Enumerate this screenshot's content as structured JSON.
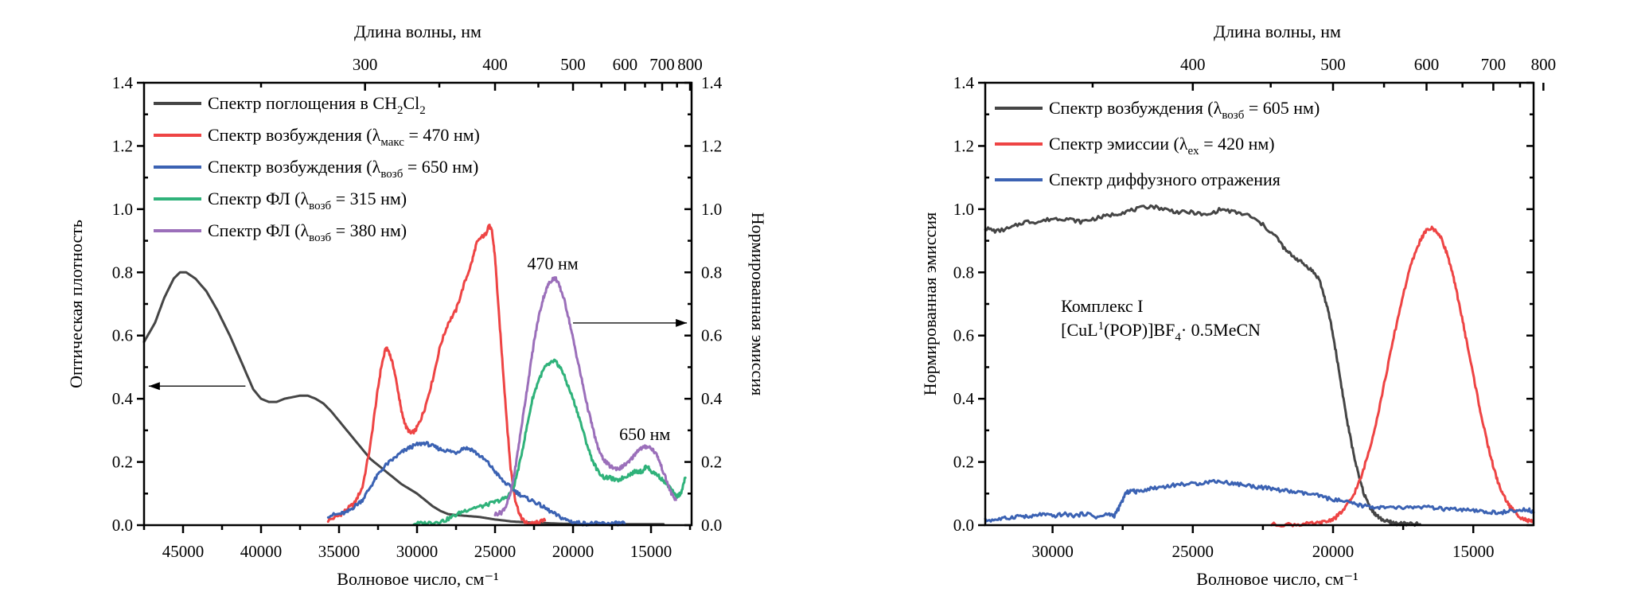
{
  "chart_data": [
    {
      "type": "line",
      "panel": "left",
      "xlabel": "Волновое число, см⁻¹",
      "ylabel_left": "Оптическая плотность",
      "ylabel_right": "Нормированная эмиссия",
      "top_axis_label": "Длина волны, нм",
      "xlim": [
        47500,
        12400
      ],
      "ylim": [
        0,
        1.4
      ],
      "x_ticks": [
        45000,
        40000,
        35000,
        30000,
        25000,
        20000,
        15000
      ],
      "x_tick_labels": [
        "45000",
        "40000",
        "35000",
        "30000",
        "25000",
        "20000",
        "15000"
      ],
      "y_ticks": [
        0.0,
        0.2,
        0.4,
        0.6,
        0.8,
        1.0,
        1.2,
        1.4
      ],
      "y_tick_labels": [
        "0.0",
        "0.2",
        "0.4",
        "0.6",
        "0.8",
        "1.0",
        "1.2",
        "1.4"
      ],
      "top_ticks_nm": [
        300,
        400,
        500,
        600,
        700,
        800
      ],
      "top_tick_labels": [
        "300",
        "400",
        "500",
        "600",
        "700",
        "800"
      ],
      "top_minor_ticks_nm": [
        250,
        350,
        450,
        550,
        650,
        750
      ],
      "grid": false,
      "legend_position": "top-left",
      "annotations": [
        {
          "text": "470 нм",
          "x": 21300,
          "y": 0.81
        },
        {
          "text": "650 нм",
          "x": 15400,
          "y": 0.27
        }
      ],
      "arrows": [
        {
          "name": "left-axis-arrow",
          "from": [
            41000,
            0.44
          ],
          "to": [
            47200,
            0.44
          ],
          "meaning": "absorption → left axis"
        },
        {
          "name": "right-axis-arrow",
          "from": [
            20000,
            0.64
          ],
          "to": [
            12700,
            0.64
          ],
          "meaning": "emission → right axis"
        }
      ],
      "series": [
        {
          "name": "Спектр поглощения в CH2Cl2",
          "legend": {
            "main": "Спектр поглощения в CH",
            "sub1": "2",
            "mid": "Cl",
            "sub2": "2",
            "tail": ""
          },
          "color": "#454545",
          "x": [
            47500,
            46800,
            46200,
            45600,
            45200,
            44800,
            44200,
            43500,
            42800,
            42000,
            41200,
            40500,
            40000,
            39500,
            39000,
            38500,
            38000,
            37500,
            37000,
            36500,
            36000,
            35500,
            35000,
            34000,
            33000,
            32000,
            31000,
            30000,
            29500,
            29000,
            28500,
            28000,
            27500,
            27000,
            26500,
            26000,
            25500,
            25000,
            24000,
            23000,
            22000,
            21000,
            20000,
            19000,
            18000,
            17000,
            16000,
            15000,
            14200
          ],
          "y": [
            0.58,
            0.64,
            0.72,
            0.78,
            0.8,
            0.8,
            0.78,
            0.74,
            0.68,
            0.6,
            0.51,
            0.43,
            0.4,
            0.39,
            0.39,
            0.4,
            0.405,
            0.41,
            0.41,
            0.4,
            0.385,
            0.36,
            0.33,
            0.27,
            0.21,
            0.17,
            0.13,
            0.1,
            0.08,
            0.06,
            0.045,
            0.035,
            0.032,
            0.03,
            0.028,
            0.026,
            0.022,
            0.018,
            0.012,
            0.009,
            0.007,
            0.005,
            0.004,
            0.003,
            0.003,
            0.003,
            0.003,
            0.003,
            0.003
          ]
        },
        {
          "name": "Спектр возбуждения (λмакс = 470 нм)",
          "legend": {
            "main": "Спектр возбуждения (λ",
            "sub1": "макс",
            "mid": " = 470 нм)",
            "sub2": "",
            "tail": ""
          },
          "color": "#ee4444",
          "x": [
            35700,
            35000,
            34500,
            34000,
            33500,
            33000,
            32600,
            32300,
            32000,
            31800,
            31500,
            31200,
            31000,
            30700,
            30400,
            30100,
            29800,
            29500,
            29000,
            28500,
            28000,
            27500,
            27000,
            26500,
            26200,
            25900,
            25600,
            25400,
            25200,
            25000,
            24800,
            24500,
            24200,
            24000,
            23700,
            23400,
            23100,
            22800,
            22500,
            22200,
            21800
          ],
          "y": [
            0.015,
            0.03,
            0.05,
            0.07,
            0.12,
            0.25,
            0.4,
            0.5,
            0.56,
            0.55,
            0.5,
            0.42,
            0.36,
            0.31,
            0.29,
            0.3,
            0.33,
            0.37,
            0.46,
            0.57,
            0.64,
            0.68,
            0.76,
            0.83,
            0.89,
            0.91,
            0.92,
            0.95,
            0.93,
            0.85,
            0.7,
            0.5,
            0.3,
            0.18,
            0.08,
            0.03,
            0.01,
            0.005,
            0.005,
            0.01,
            0.015
          ]
        },
        {
          "name": "Спектр возбуждения (λвозб = 650 нм)",
          "legend": {
            "main": "Спектр возбуждения (λ",
            "sub1": "возб",
            "mid": " = 650 нм)",
            "sub2": "",
            "tail": ""
          },
          "color": "#3b62b3",
          "x": [
            35700,
            35000,
            34500,
            34000,
            33500,
            33000,
            32500,
            32000,
            31500,
            31000,
            30500,
            30000,
            29500,
            29000,
            28500,
            28000,
            27500,
            27000,
            26500,
            26000,
            25500,
            25000,
            24500,
            24000,
            23500,
            23000,
            22500,
            22000,
            21500,
            21000,
            20500,
            20000,
            19500,
            19000,
            18500,
            18000,
            17500,
            17000,
            16700
          ],
          "y": [
            0.03,
            0.035,
            0.04,
            0.06,
            0.08,
            0.12,
            0.16,
            0.19,
            0.21,
            0.23,
            0.245,
            0.255,
            0.26,
            0.25,
            0.24,
            0.235,
            0.23,
            0.245,
            0.24,
            0.22,
            0.2,
            0.17,
            0.14,
            0.12,
            0.1,
            0.085,
            0.075,
            0.06,
            0.045,
            0.03,
            0.018,
            0.01,
            0.006,
            0.005,
            0.005,
            0.005,
            0.005,
            0.006,
            0.005
          ]
        },
        {
          "name": "Спектр ФЛ (λвозб = 315 нм)",
          "legend": {
            "main": "Спектр ФЛ (λ",
            "sub1": "возб",
            "mid": " = 315 нм)",
            "sub2": "",
            "tail": ""
          },
          "color": "#2fb27a",
          "x": [
            30200,
            29500,
            28800,
            28200,
            27600,
            27000,
            26400,
            25800,
            25200,
            24600,
            24200,
            23800,
            23400,
            23000,
            22600,
            22200,
            21800,
            21500,
            21200,
            21000,
            20700,
            20400,
            20000,
            19600,
            19200,
            18800,
            18400,
            18000,
            17600,
            17200,
            16800,
            16400,
            16000,
            15700,
            15500,
            15300,
            15000,
            14600,
            14200,
            13800,
            13400,
            13100,
            12800
          ],
          "y": [
            0.005,
            0.006,
            0.01,
            0.015,
            0.03,
            0.045,
            0.055,
            0.06,
            0.07,
            0.08,
            0.09,
            0.12,
            0.2,
            0.3,
            0.4,
            0.46,
            0.5,
            0.51,
            0.52,
            0.51,
            0.49,
            0.45,
            0.4,
            0.34,
            0.27,
            0.21,
            0.17,
            0.15,
            0.15,
            0.14,
            0.15,
            0.16,
            0.17,
            0.17,
            0.17,
            0.19,
            0.17,
            0.16,
            0.14,
            0.12,
            0.09,
            0.1,
            0.15
          ]
        },
        {
          "name": "Спектр ФЛ (λвозб = 380 нм)",
          "legend": {
            "main": "Спектр ФЛ (λ",
            "sub1": "возб",
            "mid": " = 380 нм)",
            "sub2": "",
            "tail": ""
          },
          "color": "#9b6fba",
          "x": [
            25000,
            24600,
            24300,
            24000,
            23700,
            23400,
            23100,
            22800,
            22500,
            22200,
            21900,
            21600,
            21300,
            21100,
            20900,
            20600,
            20300,
            20000,
            19700,
            19400,
            19100,
            18800,
            18500,
            18200,
            17900,
            17600,
            17300,
            17000,
            16700,
            16400,
            16100,
            15800,
            15500,
            15200,
            14900,
            14600,
            14300,
            14000,
            13700,
            13400
          ],
          "y": [
            0.035,
            0.04,
            0.06,
            0.1,
            0.18,
            0.28,
            0.38,
            0.48,
            0.58,
            0.66,
            0.72,
            0.76,
            0.78,
            0.78,
            0.76,
            0.72,
            0.66,
            0.59,
            0.52,
            0.45,
            0.38,
            0.32,
            0.26,
            0.22,
            0.2,
            0.185,
            0.18,
            0.18,
            0.19,
            0.2,
            0.22,
            0.24,
            0.245,
            0.25,
            0.24,
            0.22,
            0.18,
            0.14,
            0.1,
            0.08
          ]
        }
      ]
    },
    {
      "type": "line",
      "panel": "right",
      "xlabel": "Волновое число, см⁻¹",
      "ylabel": "Нормированная эмиссия",
      "top_axis_label": "Длина волны, нм",
      "xlim": [
        32400,
        12850
      ],
      "ylim": [
        0,
        1.4
      ],
      "x_ticks": [
        30000,
        25000,
        20000,
        15000
      ],
      "x_tick_labels": [
        "30000",
        "25000",
        "20000",
        "15000"
      ],
      "x_minor_ticks": [
        27500,
        22500,
        17500
      ],
      "y_ticks": [
        0.0,
        0.2,
        0.4,
        0.6,
        0.8,
        1.0,
        1.2,
        1.4
      ],
      "y_tick_labels": [
        "0.0",
        "0.2",
        "0.4",
        "0.6",
        "0.8",
        "1.0",
        "1.2",
        "1.4"
      ],
      "top_ticks_nm": [
        400,
        500,
        600,
        700,
        800
      ],
      "top_tick_labels": [
        "400",
        "500",
        "600",
        "700",
        "800"
      ],
      "top_minor_ticks_nm": [
        350,
        450,
        550,
        650,
        750
      ],
      "grid": false,
      "legend_position": "top-left",
      "annotations": [
        {
          "line1": "Комплекс I",
          "line2_parts": {
            "a": "[CuL",
            "sup": "1",
            "b": "(POP)]BF",
            "sub": "4",
            "c": "· 0.5MeCN"
          },
          "x": 29700,
          "y": 0.62
        }
      ],
      "series": [
        {
          "name": "Спектр возбуждения (λвозб = 605 нм)",
          "legend": {
            "main": "Спектр возбуждения (λ",
            "sub1": "возб",
            "mid": " = 605 нм)",
            "sub2": "",
            "tail": ""
          },
          "color": "#454545",
          "x": [
            32400,
            32000,
            31500,
            31000,
            30500,
            30000,
            29500,
            29000,
            28500,
            28000,
            27500,
            27000,
            26500,
            26000,
            25500,
            25000,
            24500,
            24000,
            23500,
            23000,
            22500,
            22000,
            21700,
            21400,
            21100,
            20800,
            20500,
            20300,
            20100,
            19900,
            19700,
            19500,
            19300,
            19100,
            18900,
            18700,
            18500,
            18300,
            18100,
            17900,
            17700,
            17500,
            17200,
            16900
          ],
          "y": [
            0.94,
            0.93,
            0.94,
            0.96,
            0.96,
            0.97,
            0.97,
            0.96,
            0.97,
            0.98,
            0.99,
            1.0,
            1.01,
            1.0,
            0.99,
            0.99,
            0.98,
            1.0,
            0.99,
            0.98,
            0.95,
            0.91,
            0.87,
            0.85,
            0.83,
            0.81,
            0.78,
            0.72,
            0.65,
            0.55,
            0.44,
            0.33,
            0.24,
            0.16,
            0.1,
            0.06,
            0.035,
            0.02,
            0.012,
            0.008,
            0.005,
            0.004,
            0.003,
            0.003
          ]
        },
        {
          "name": "Спектр эмиссии (λex = 420 нм)",
          "legend": {
            "main": "Спектр эмиссии (λ",
            "sub1": "ex",
            "mid": " = 420 нм)",
            "sub2": "",
            "tail": ""
          },
          "color": "#ee4444",
          "x": [
            22200,
            21500,
            21000,
            20500,
            20200,
            19900,
            19600,
            19300,
            19000,
            18700,
            18400,
            18100,
            17800,
            17500,
            17200,
            16900,
            16700,
            16500,
            16300,
            16100,
            15900,
            15700,
            15500,
            15300,
            15100,
            14900,
            14700,
            14500,
            14300,
            14100,
            13900,
            13700,
            13500,
            13300,
            13100,
            12900
          ],
          "y": [
            0.002,
            0.002,
            0.003,
            0.006,
            0.012,
            0.025,
            0.05,
            0.09,
            0.15,
            0.24,
            0.35,
            0.48,
            0.61,
            0.73,
            0.83,
            0.9,
            0.93,
            0.94,
            0.93,
            0.9,
            0.85,
            0.78,
            0.7,
            0.61,
            0.52,
            0.43,
            0.34,
            0.26,
            0.19,
            0.13,
            0.09,
            0.06,
            0.04,
            0.025,
            0.015,
            0.01
          ]
        },
        {
          "name": "Спектр диффузного отражения",
          "legend": {
            "main": "Спектр диффузного отражения",
            "sub1": "",
            "mid": "",
            "sub2": "",
            "tail": ""
          },
          "color": "#3b62b3",
          "x": [
            32400,
            32000,
            31600,
            31200,
            30800,
            30400,
            30000,
            29600,
            29200,
            28800,
            28400,
            28000,
            27800,
            27600,
            27400,
            27200,
            27000,
            26600,
            26200,
            25800,
            25400,
            25000,
            24600,
            24200,
            23800,
            23400,
            23000,
            22600,
            22200,
            21800,
            21400,
            21000,
            20600,
            20200,
            19800,
            19400,
            19000,
            18600,
            18200,
            17800,
            17400,
            17000,
            16600,
            16200,
            15800,
            15400,
            15000,
            14600,
            14200,
            13800,
            13400,
            13000,
            12850
          ],
          "y": [
            0.015,
            0.018,
            0.022,
            0.03,
            0.025,
            0.035,
            0.028,
            0.035,
            0.03,
            0.037,
            0.025,
            0.035,
            0.03,
            0.06,
            0.1,
            0.11,
            0.105,
            0.115,
            0.12,
            0.125,
            0.13,
            0.13,
            0.135,
            0.14,
            0.135,
            0.13,
            0.125,
            0.12,
            0.115,
            0.11,
            0.105,
            0.1,
            0.095,
            0.085,
            0.078,
            0.07,
            0.062,
            0.058,
            0.055,
            0.055,
            0.055,
            0.058,
            0.056,
            0.052,
            0.05,
            0.048,
            0.045,
            0.042,
            0.04,
            0.042,
            0.045,
            0.05,
            0.04
          ]
        }
      ]
    }
  ]
}
